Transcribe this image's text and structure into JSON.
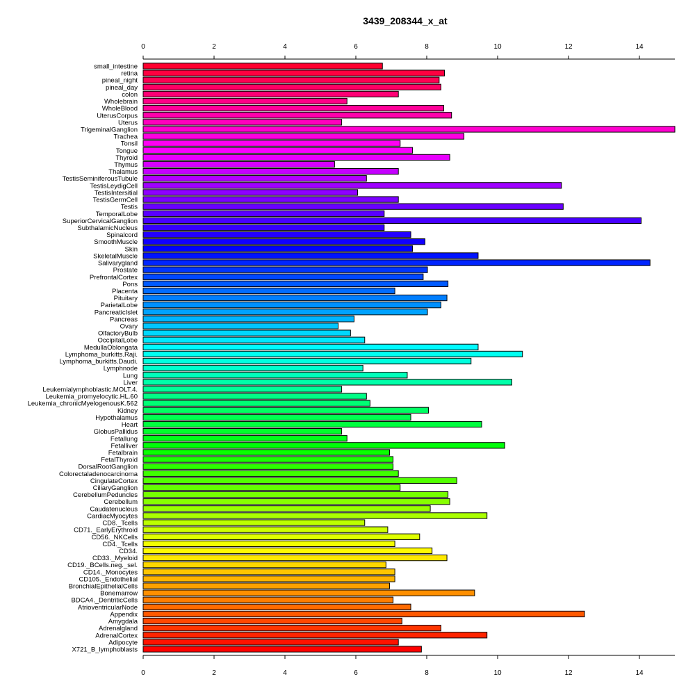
{
  "chart_data": {
    "type": "bar",
    "orientation": "horizontal",
    "title": "3439_208344_x_at",
    "xlabel": "",
    "ylabel": "",
    "xlim": [
      0,
      15
    ],
    "xticks": [
      0,
      2,
      4,
      6,
      8,
      10,
      12,
      14
    ],
    "axis_positions": [
      "top",
      "bottom"
    ],
    "grid": false,
    "legend": "none",
    "color_scheme": "rainbow",
    "categories": [
      "small_intestine",
      "retina",
      "pineal_night",
      "pineal_day",
      "colon",
      "Wholebrain",
      "WholeBlood",
      "UterusCorpus",
      "Uterus",
      "TrigeminalGanglion",
      "Trachea",
      "Tonsil",
      "Tongue",
      "Thyroid",
      "Thymus",
      "Thalamus",
      "TestisSeminiferousTubule",
      "TestisLeydigCell",
      "TestisIntersitial",
      "TestisGermCell",
      "Testis",
      "TemporalLobe",
      "SuperiorCervicalGanglion",
      "SubthalamicNucleus",
      "Spinalcord",
      "SmoothMuscle",
      "Skin",
      "SkeletalMuscle",
      "Salivarygland",
      "Prostate",
      "PrefrontalCortex",
      "Pons",
      "Placenta",
      "Pituitary",
      "ParietalLobe",
      "PancreaticIslet",
      "Pancreas",
      "Ovary",
      "OlfactoryBulb",
      "OccipitalLobe",
      "MedullaOblongata",
      "Lymphoma_burkitts.Raji.",
      "Lymphoma_burkitts.Daudi.",
      "Lymphnode",
      "Lung",
      "Liver",
      "Leukemialymphoblastic.MOLT.4.",
      "Leukemia_promyelocytic.HL.60",
      "Leukemia_chronicMyelogenousK.562",
      "Kidney",
      "Hypothalamus",
      "Heart",
      "GlobusPallidus",
      "Fetallung",
      "Fetalliver",
      "Fetalbrain",
      "FetalThyroid",
      "DorsalRootGanglion",
      "Colorectaladenocarcinoma",
      "CingulateCortex",
      "CiliaryGanglion",
      "CerebellumPeduncles",
      "Cerebellum",
      "Caudatenucleus",
      "CardiacMyocytes",
      "CD8._Tcells",
      "CD71._EarlyErythroid",
      "CD56._NKCells",
      "CD4._Tcells",
      "CD34.",
      "CD33._Myeloid",
      "CD19._BCells.neg._sel.",
      "CD14._Monocytes",
      "CD105._Endothelial",
      "BronchialEpithelialCells",
      "Bonemarrow",
      "BDCA4._DentriticCells",
      "AtrioventricularNode",
      "Appendix",
      "Amygdala",
      "Adrenalgland",
      "AdrenalCortex",
      "Adipocyte",
      "X721_B_lymphoblasts"
    ],
    "values": [
      6.75,
      8.5,
      8.35,
      8.4,
      7.2,
      5.75,
      8.48,
      8.7,
      5.6,
      15.0,
      9.05,
      7.25,
      7.6,
      8.65,
      5.4,
      7.2,
      6.3,
      11.8,
      6.05,
      7.2,
      11.85,
      6.8,
      14.05,
      6.8,
      7.55,
      7.95,
      7.6,
      9.45,
      14.3,
      8.02,
      7.9,
      8.6,
      7.1,
      8.57,
      8.4,
      8.02,
      5.95,
      5.5,
      5.85,
      6.25,
      9.45,
      10.7,
      9.25,
      6.2,
      7.45,
      10.4,
      5.6,
      6.3,
      6.4,
      8.05,
      7.55,
      9.55,
      5.6,
      5.75,
      10.2,
      6.95,
      7.05,
      7.05,
      7.2,
      8.85,
      7.25,
      8.6,
      8.65,
      8.1,
      9.7,
      6.25,
      6.9,
      7.8,
      7.1,
      8.15,
      8.57,
      6.85,
      7.1,
      7.1,
      6.95,
      9.35,
      7.05,
      7.55,
      12.45,
      7.3,
      8.4,
      9.7,
      7.2,
      7.85
    ]
  }
}
